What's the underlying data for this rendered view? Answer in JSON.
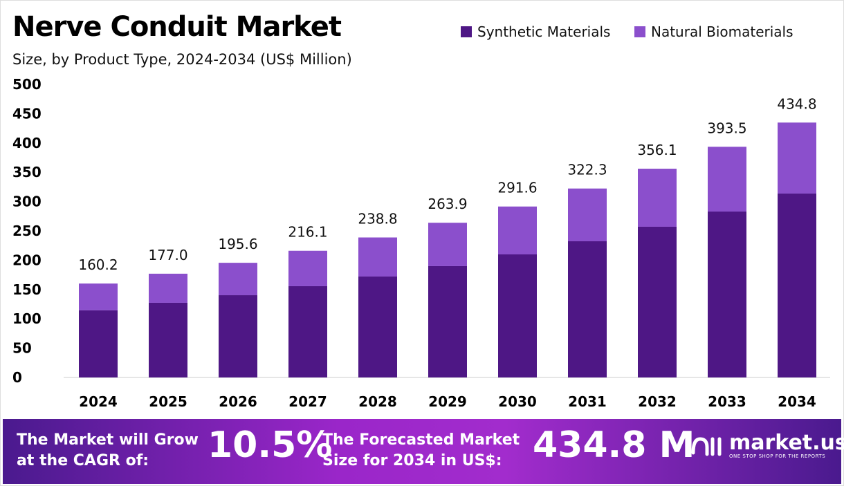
{
  "chart_data": {
    "type": "bar",
    "stacked": true,
    "title": "Nerve Conduit Market",
    "subtitle": "Size, by Product Type, 2024-2034 (US$ Million)",
    "categories": [
      "2024",
      "2025",
      "2026",
      "2027",
      "2028",
      "2029",
      "2030",
      "2031",
      "2032",
      "2033",
      "2034"
    ],
    "series": [
      {
        "name": "Synthetic Materials",
        "color": "#4e1785",
        "values": [
          114.5,
          127.4,
          140.3,
          155.7,
          172.2,
          189.9,
          209.9,
          232.3,
          257.1,
          283.0,
          313.7
        ]
      },
      {
        "name": "Natural Biomaterials",
        "color": "#8b4fcc",
        "values": [
          45.7,
          49.6,
          55.3,
          60.4,
          66.6,
          74.0,
          81.7,
          90.0,
          99.0,
          110.5,
          121.1
        ]
      }
    ],
    "totals": [
      "160.2",
      "177.0",
      "195.6",
      "216.1",
      "238.8",
      "263.9",
      "291.6",
      "322.3",
      "356.1",
      "393.5",
      "434.8"
    ],
    "yticks": [
      "0",
      "50",
      "100",
      "150",
      "200",
      "250",
      "300",
      "350",
      "400",
      "450",
      "500"
    ],
    "ylim": [
      0,
      500
    ],
    "grid": false,
    "legend_position": "top-right"
  },
  "footer": {
    "cagr_label": "The Market will Grow at the CAGR of:",
    "cagr_value": "10.5%",
    "forecast_label": "The Forecasted Market Size for 2034 in US$:",
    "forecast_value": "434.8 M",
    "brand": "market.us",
    "tagline": "ONE STOP SHOP FOR THE REPORTS"
  }
}
